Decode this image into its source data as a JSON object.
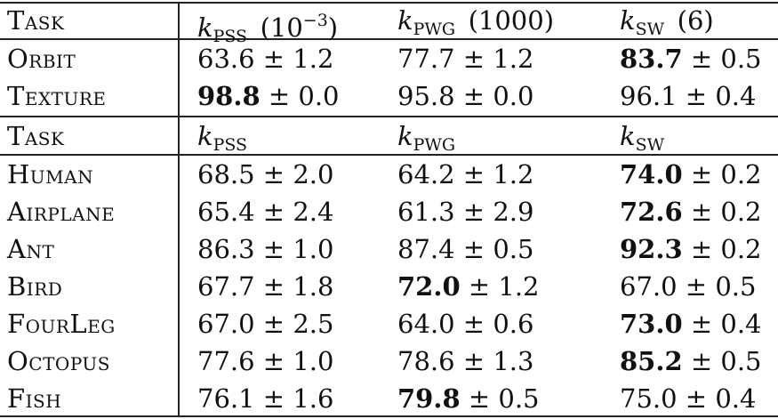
{
  "header1": {
    "task": "Task",
    "cols": [
      {
        "var": "k",
        "sub": "PSS",
        "note_pre": "(10",
        "note_sup": "−3",
        "note_post": ")"
      },
      {
        "var": "k",
        "sub": "PWG",
        "note_pre": "(1000)",
        "note_sup": "",
        "note_post": ""
      },
      {
        "var": "k",
        "sub": "SW",
        "note_pre": "(6)",
        "note_sup": "",
        "note_post": ""
      }
    ]
  },
  "rows1": [
    {
      "task": "Orbit",
      "values": [
        {
          "mean": "63.6",
          "sd": "1.2",
          "bold": false
        },
        {
          "mean": "77.7",
          "sd": "1.2",
          "bold": false
        },
        {
          "mean": "83.7",
          "sd": "0.5",
          "bold": true
        }
      ]
    },
    {
      "task": "Texture",
      "values": [
        {
          "mean": "98.8",
          "sd": "0.0",
          "bold": true
        },
        {
          "mean": "95.8",
          "sd": "0.0",
          "bold": false
        },
        {
          "mean": "96.1",
          "sd": "0.4",
          "bold": false
        }
      ]
    }
  ],
  "header2": {
    "task": "Task",
    "cols": [
      {
        "var": "k",
        "sub": "PSS"
      },
      {
        "var": "k",
        "sub": "PWG"
      },
      {
        "var": "k",
        "sub": "SW"
      }
    ]
  },
  "rows2": [
    {
      "task": "Human",
      "values": [
        {
          "mean": "68.5",
          "sd": "2.0",
          "bold": false
        },
        {
          "mean": "64.2",
          "sd": "1.2",
          "bold": false
        },
        {
          "mean": "74.0",
          "sd": "0.2",
          "bold": true
        }
      ]
    },
    {
      "task": "Airplane",
      "values": [
        {
          "mean": "65.4",
          "sd": "2.4",
          "bold": false
        },
        {
          "mean": "61.3",
          "sd": "2.9",
          "bold": false
        },
        {
          "mean": "72.6",
          "sd": "0.2",
          "bold": true
        }
      ]
    },
    {
      "task": "Ant",
      "values": [
        {
          "mean": "86.3",
          "sd": "1.0",
          "bold": false
        },
        {
          "mean": "87.4",
          "sd": "0.5",
          "bold": false
        },
        {
          "mean": "92.3",
          "sd": "0.2",
          "bold": true
        }
      ]
    },
    {
      "task": "Bird",
      "values": [
        {
          "mean": "67.7",
          "sd": "1.8",
          "bold": false
        },
        {
          "mean": "72.0",
          "sd": "1.2",
          "bold": true
        },
        {
          "mean": "67.0",
          "sd": "0.5",
          "bold": false
        }
      ]
    },
    {
      "task": "FourLeg",
      "values": [
        {
          "mean": "67.0",
          "sd": "2.5",
          "bold": false
        },
        {
          "mean": "64.0",
          "sd": "0.6",
          "bold": false
        },
        {
          "mean": "73.0",
          "sd": "0.4",
          "bold": true
        }
      ]
    },
    {
      "task": "Octopus",
      "values": [
        {
          "mean": "77.6",
          "sd": "1.0",
          "bold": false
        },
        {
          "mean": "78.6",
          "sd": "1.3",
          "bold": false
        },
        {
          "mean": "85.2",
          "sd": "0.5",
          "bold": true
        }
      ]
    },
    {
      "task": "Fish",
      "values": [
        {
          "mean": "76.1",
          "sd": "1.6",
          "bold": false
        },
        {
          "mean": "79.8",
          "sd": "0.5",
          "bold": true
        },
        {
          "mean": "75.0",
          "sd": "0.4",
          "bold": false
        }
      ]
    }
  ],
  "pm": "±"
}
